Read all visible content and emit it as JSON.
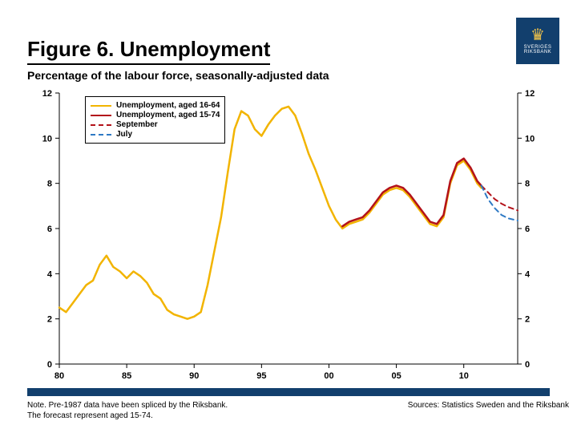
{
  "logo": {
    "org_top": "SVERIGES",
    "org_bottom": "RIKSBANK",
    "bg": "#123f6d",
    "crown_color": "#f0c24a"
  },
  "title": "Figure 6. Unemployment",
  "subtitle": "Percentage of the labour force, seasonally-adjusted data",
  "note_line1": "Note. Pre-1987 data have been spliced by the Riksbank.",
  "note_line2": "The forecast represent aged 15-74.",
  "sources": "Sources: Statistics Sweden and the Riksbank",
  "chart": {
    "type": "line",
    "background_color": "#ffffff",
    "axis_color": "#000000",
    "axis_width": 1,
    "font_family": "Arial",
    "tick_fontsize": 11,
    "tick_fontweight": "bold",
    "xlim": [
      1980,
      2014
    ],
    "ylim": [
      0,
      12
    ],
    "ytick_step": 2,
    "xtick_step": 5,
    "xticks": [
      1980,
      1985,
      1990,
      1995,
      2000,
      2005,
      2010
    ],
    "xtick_labels": [
      "80",
      "85",
      "90",
      "95",
      "00",
      "05",
      "10"
    ],
    "yticks": [
      0,
      2,
      4,
      6,
      8,
      10,
      12
    ],
    "right_axis": true,
    "grid": false,
    "legend": {
      "position": "upper-left",
      "border": "#000000",
      "fontsize": 10,
      "items": [
        {
          "label": "Unemployment, aged 16-64",
          "color": "#f2b400",
          "dash": "solid",
          "width": 2.5
        },
        {
          "label": "Unemployment, aged 15-74",
          "color": "#b3121a",
          "dash": "solid",
          "width": 2.5
        },
        {
          "label": "September",
          "color": "#b3121a",
          "dash": "dashed",
          "width": 2
        },
        {
          "label": "July",
          "color": "#2e79c4",
          "dash": "dashed",
          "width": 2
        }
      ]
    },
    "series": [
      {
        "name": "unemp_16_64",
        "color": "#f2b400",
        "width": 2.5,
        "dash": "solid",
        "points": [
          [
            1980.0,
            2.5
          ],
          [
            1980.5,
            2.3
          ],
          [
            1981.0,
            2.7
          ],
          [
            1981.5,
            3.1
          ],
          [
            1982.0,
            3.5
          ],
          [
            1982.5,
            3.7
          ],
          [
            1983.0,
            4.4
          ],
          [
            1983.5,
            4.8
          ],
          [
            1984.0,
            4.3
          ],
          [
            1984.5,
            4.1
          ],
          [
            1985.0,
            3.8
          ],
          [
            1985.5,
            4.1
          ],
          [
            1986.0,
            3.9
          ],
          [
            1986.5,
            3.6
          ],
          [
            1987.0,
            3.1
          ],
          [
            1987.5,
            2.9
          ],
          [
            1988.0,
            2.4
          ],
          [
            1988.5,
            2.2
          ],
          [
            1989.0,
            2.1
          ],
          [
            1989.5,
            2.0
          ],
          [
            1990.0,
            2.1
          ],
          [
            1990.5,
            2.3
          ],
          [
            1991.0,
            3.5
          ],
          [
            1991.5,
            5.0
          ],
          [
            1992.0,
            6.5
          ],
          [
            1992.5,
            8.5
          ],
          [
            1993.0,
            10.4
          ],
          [
            1993.5,
            11.2
          ],
          [
            1994.0,
            11.0
          ],
          [
            1994.5,
            10.4
          ],
          [
            1995.0,
            10.1
          ],
          [
            1995.5,
            10.6
          ],
          [
            1996.0,
            11.0
          ],
          [
            1996.5,
            11.3
          ],
          [
            1997.0,
            11.4
          ],
          [
            1997.5,
            11.0
          ],
          [
            1998.0,
            10.2
          ],
          [
            1998.5,
            9.3
          ],
          [
            1999.0,
            8.6
          ],
          [
            1999.5,
            7.8
          ],
          [
            2000.0,
            7.0
          ],
          [
            2000.5,
            6.4
          ],
          [
            2001.0,
            6.0
          ],
          [
            2001.5,
            6.2
          ],
          [
            2002.0,
            6.3
          ],
          [
            2002.5,
            6.4
          ],
          [
            2003.0,
            6.7
          ],
          [
            2003.5,
            7.1
          ],
          [
            2004.0,
            7.5
          ],
          [
            2004.5,
            7.7
          ],
          [
            2005.0,
            7.8
          ],
          [
            2005.5,
            7.7
          ],
          [
            2006.0,
            7.4
          ],
          [
            2006.5,
            7.0
          ],
          [
            2007.0,
            6.6
          ],
          [
            2007.5,
            6.2
          ],
          [
            2008.0,
            6.1
          ],
          [
            2008.5,
            6.5
          ],
          [
            2009.0,
            8.0
          ],
          [
            2009.5,
            8.8
          ],
          [
            2010.0,
            9.0
          ],
          [
            2010.5,
            8.6
          ],
          [
            2011.0,
            8.0
          ],
          [
            2011.3,
            7.8
          ]
        ]
      },
      {
        "name": "unemp_15_74",
        "color": "#b3121a",
        "width": 2.5,
        "dash": "solid",
        "points": [
          [
            2001.0,
            6.1
          ],
          [
            2001.5,
            6.3
          ],
          [
            2002.0,
            6.4
          ],
          [
            2002.5,
            6.5
          ],
          [
            2003.0,
            6.8
          ],
          [
            2003.5,
            7.2
          ],
          [
            2004.0,
            7.6
          ],
          [
            2004.5,
            7.8
          ],
          [
            2005.0,
            7.9
          ],
          [
            2005.5,
            7.8
          ],
          [
            2006.0,
            7.5
          ],
          [
            2006.5,
            7.1
          ],
          [
            2007.0,
            6.7
          ],
          [
            2007.5,
            6.3
          ],
          [
            2008.0,
            6.2
          ],
          [
            2008.5,
            6.6
          ],
          [
            2009.0,
            8.1
          ],
          [
            2009.5,
            8.9
          ],
          [
            2010.0,
            9.1
          ],
          [
            2010.5,
            8.7
          ],
          [
            2011.0,
            8.1
          ],
          [
            2011.3,
            7.9
          ]
        ]
      },
      {
        "name": "september_forecast",
        "color": "#b3121a",
        "width": 2,
        "dash": "dashed",
        "points": [
          [
            2011.3,
            7.9
          ],
          [
            2011.8,
            7.6
          ],
          [
            2012.3,
            7.3
          ],
          [
            2012.8,
            7.1
          ],
          [
            2013.3,
            6.95
          ],
          [
            2014.0,
            6.8
          ]
        ]
      },
      {
        "name": "july_forecast",
        "color": "#2e79c4",
        "width": 2,
        "dash": "dashed",
        "points": [
          [
            2011.3,
            7.9
          ],
          [
            2011.8,
            7.3
          ],
          [
            2012.3,
            6.9
          ],
          [
            2012.8,
            6.6
          ],
          [
            2013.3,
            6.45
          ],
          [
            2014.0,
            6.35
          ]
        ]
      }
    ]
  }
}
